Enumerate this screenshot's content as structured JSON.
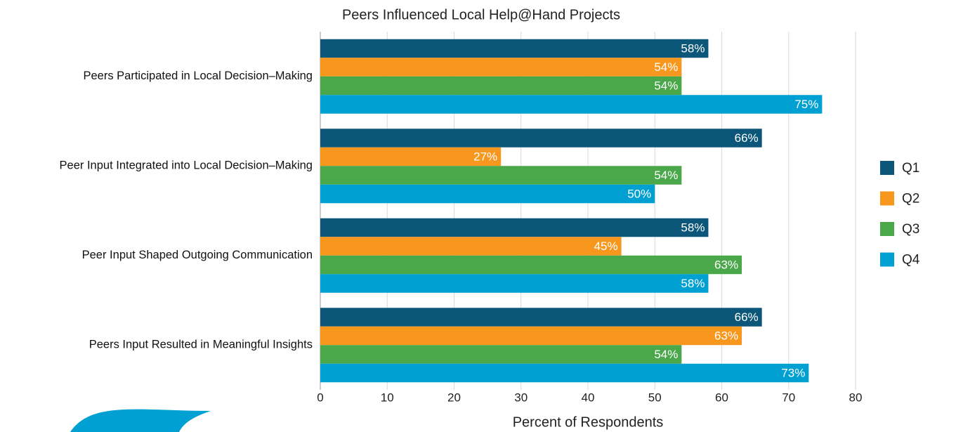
{
  "chart_data": {
    "type": "bar",
    "orientation": "horizontal",
    "title": "Peers Influenced Local Help@Hand Projects",
    "x_label": "Percent of Respondents",
    "categories": [
      "Peers Participated in Local Decision–Making",
      "Peer Input Integrated into Local Decision–Making",
      "Peer Input Shaped Outgoing Communication",
      "Peers Input Resulted in Meaningful Insights"
    ],
    "series": [
      {
        "name": "Q1",
        "color": "#0b5679",
        "values": [
          58,
          66,
          58,
          66
        ],
        "value_labels": [
          "58%",
          "66%",
          "58%",
          "66%"
        ]
      },
      {
        "name": "Q2",
        "color": "#f7971e",
        "values": [
          54,
          27,
          45,
          63
        ],
        "value_labels": [
          "54%",
          "27%",
          "45%",
          "63%"
        ]
      },
      {
        "name": "Q3",
        "color": "#4aa74a",
        "values": [
          54,
          54,
          63,
          54
        ],
        "value_labels": [
          "54%",
          "54%",
          "63%",
          "54%"
        ]
      },
      {
        "name": "Q4",
        "color": "#00a0d2",
        "values": [
          75,
          50,
          58,
          73
        ],
        "value_labels": [
          "75%",
          "50%",
          "58%",
          "73%"
        ]
      }
    ],
    "xlim": [
      0,
      80
    ],
    "xticks": [
      0,
      10,
      20,
      30,
      40,
      50,
      60,
      70,
      80
    ],
    "grid": true,
    "legend": "right"
  }
}
